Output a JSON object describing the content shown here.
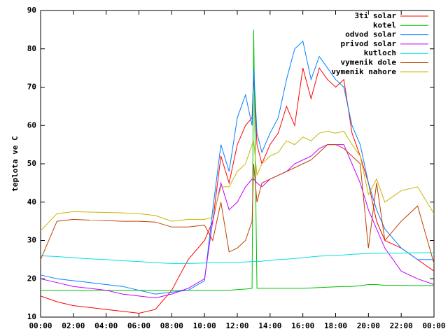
{
  "chart_data": {
    "type": "line",
    "y_label": "teplota ve C",
    "x": [
      0,
      1,
      2,
      3,
      4,
      5,
      6,
      7,
      8,
      9,
      10,
      10.5,
      11,
      11.5,
      12,
      12.5,
      12.9,
      13,
      13.2,
      13.5,
      14,
      14.5,
      15,
      15.5,
      16,
      16.5,
      17,
      17.5,
      18,
      18.5,
      19,
      19.5,
      20,
      20.5,
      21,
      22,
      23,
      24
    ],
    "series": [
      {
        "name": "3ti solar",
        "color": "#ff0000",
        "values": [
          15.5,
          14,
          13,
          12.5,
          12,
          11.5,
          11,
          12,
          17,
          25,
          30,
          35,
          52,
          45,
          55,
          60,
          62,
          73,
          55,
          50,
          55,
          58,
          65,
          60,
          75,
          67,
          75,
          72,
          70,
          72,
          58,
          52,
          45,
          35,
          30,
          28,
          25,
          22
        ]
      },
      {
        "name": "kotel",
        "color": "#00c000",
        "values": [
          17,
          17,
          17,
          17,
          17,
          17,
          17,
          17,
          17,
          17,
          17,
          17,
          17,
          17,
          17.2,
          17.3,
          17.5,
          85,
          17.5,
          17.5,
          17.5,
          17.5,
          17.5,
          17.5,
          17.5,
          17.6,
          17.7,
          17.8,
          17.9,
          18,
          18,
          18.2,
          18.5,
          18.5,
          18.3,
          18.3,
          18.2,
          18.3
        ]
      },
      {
        "name": "odvod solar",
        "color": "#0080ff",
        "values": [
          21,
          20,
          19.5,
          19,
          18.5,
          18,
          17,
          16,
          16.5,
          17,
          19.5,
          38,
          55,
          48,
          62,
          68,
          60,
          75,
          58,
          53,
          58,
          62,
          72,
          80,
          82,
          72,
          78,
          75,
          72,
          70,
          60,
          55,
          45,
          38,
          33,
          28,
          25,
          25
        ]
      },
      {
        "name": "privod solar",
        "color": "#c000ff",
        "values": [
          20,
          19,
          18,
          17.5,
          17,
          16,
          15.5,
          15,
          16,
          17.5,
          20,
          35,
          45,
          38,
          40,
          44,
          46,
          46,
          45,
          44,
          46,
          47,
          48,
          50,
          51,
          52,
          54,
          55,
          55,
          55,
          50,
          45,
          38,
          33,
          28,
          22,
          20,
          18.5
        ]
      },
      {
        "name": "kutloch",
        "color": "#00e0e0",
        "values": [
          26,
          25.8,
          25.5,
          25.2,
          25,
          24.7,
          24.5,
          24.2,
          24,
          24,
          24.1,
          24.2,
          24.2,
          24.3,
          24.3,
          24.4,
          24.5,
          24.5,
          24.5,
          24.6,
          24.8,
          25,
          25.1,
          25.3,
          25.5,
          25.7,
          25.9,
          26,
          26.1,
          26.2,
          26.4,
          26.5,
          26.6,
          26.6,
          26.7,
          26.7,
          26.8,
          26.8
        ]
      },
      {
        "name": "vymenik dole",
        "color": "#c04000",
        "values": [
          25,
          35,
          35.5,
          35.3,
          35.2,
          35,
          35,
          34.8,
          33.5,
          33.5,
          34,
          30,
          40,
          27,
          28,
          30,
          35,
          50,
          40,
          45,
          46,
          47,
          48,
          49,
          50,
          51,
          53,
          55,
          55,
          54,
          52,
          50,
          28,
          45,
          30,
          35,
          39,
          24
        ]
      },
      {
        "name": "vymenik nahore",
        "color": "#c8b400",
        "values": [
          32.5,
          37,
          37.5,
          37.4,
          37.3,
          37.2,
          37,
          36.5,
          35,
          35.5,
          35.5,
          36,
          44,
          44,
          48,
          50,
          55,
          56,
          47,
          50,
          52,
          53,
          56,
          55,
          57,
          56,
          58,
          58.5,
          58,
          58.5,
          55,
          52,
          42,
          46,
          40,
          43,
          44,
          37
        ]
      }
    ],
    "xlim": [
      0,
      24
    ],
    "xticks": [
      {
        "value": 0,
        "label": "00:00"
      },
      {
        "value": 2,
        "label": "02:00"
      },
      {
        "value": 4,
        "label": "04:00"
      },
      {
        "value": 6,
        "label": "06:00"
      },
      {
        "value": 8,
        "label": "08:00"
      },
      {
        "value": 10,
        "label": "10:00"
      },
      {
        "value": 12,
        "label": "12:00"
      },
      {
        "value": 14,
        "label": "14:00"
      },
      {
        "value": 16,
        "label": "16:00"
      },
      {
        "value": 18,
        "label": "18:00"
      },
      {
        "value": 20,
        "label": "20:00"
      },
      {
        "value": 22,
        "label": "22:00"
      },
      {
        "value": 24,
        "label": "00:00"
      }
    ],
    "ylim": [
      10,
      90
    ],
    "yticks": [
      10,
      20,
      30,
      40,
      50,
      60,
      70,
      80,
      90
    ],
    "legend": "top-right"
  }
}
